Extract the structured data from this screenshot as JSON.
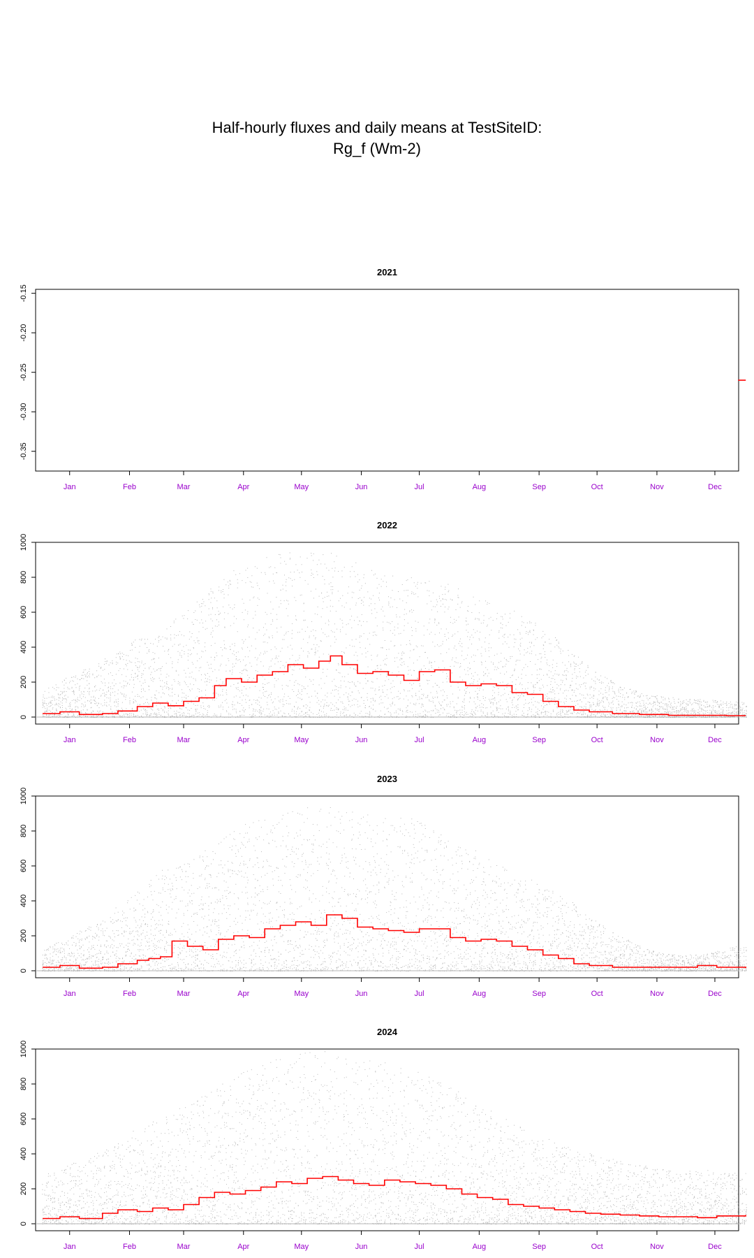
{
  "title_line1": "Half-hourly fluxes and daily means at TestSiteID:",
  "title_line2": "Rg_f (Wm-2)",
  "colors": {
    "daily_mean": "#ff0000",
    "halfhourly": "#9a9a9a",
    "month_label": "#9900cc",
    "zero_line": "#b4b4b4"
  },
  "months": [
    "Jan",
    "Feb",
    "Mar",
    "Apr",
    "May",
    "Jun",
    "Jul",
    "Aug",
    "Sep",
    "Oct",
    "Nov",
    "Dec"
  ],
  "chart_data": [
    {
      "type": "line",
      "title": "2021",
      "ylim": [
        -0.375,
        -0.145
      ],
      "yticks": [
        "-0.15",
        "-0.20",
        "-0.25",
        "-0.30",
        "-0.35"
      ],
      "ytick_values": [
        -0.15,
        -0.2,
        -0.25,
        -0.3,
        -0.35
      ],
      "daily_mean": [
        [
          361,
          -0.26
        ],
        [
          365,
          -0.26
        ]
      ],
      "halfhourly_envelope": null,
      "grid": false
    },
    {
      "type": "line",
      "title": "2022",
      "ylim": [
        -40,
        1000
      ],
      "yticks": [
        "0",
        "200",
        "400",
        "600",
        "800",
        "1000"
      ],
      "ytick_values": [
        0,
        200,
        400,
        600,
        800,
        1000
      ],
      "halfhourly_envelope": [
        [
          1,
          150
        ],
        [
          15,
          240
        ],
        [
          32,
          330
        ],
        [
          45,
          430
        ],
        [
          60,
          480
        ],
        [
          75,
          620
        ],
        [
          90,
          760
        ],
        [
          105,
          880
        ],
        [
          120,
          930
        ],
        [
          135,
          960
        ],
        [
          150,
          940
        ],
        [
          165,
          880
        ],
        [
          180,
          830
        ],
        [
          195,
          800
        ],
        [
          210,
          780
        ],
        [
          225,
          700
        ],
        [
          240,
          640
        ],
        [
          255,
          560
        ],
        [
          270,
          420
        ],
        [
          285,
          280
        ],
        [
          300,
          180
        ],
        [
          315,
          130
        ],
        [
          330,
          110
        ],
        [
          345,
          100
        ],
        [
          360,
          90
        ]
      ],
      "daily_mean": [
        [
          1,
          20
        ],
        [
          10,
          30
        ],
        [
          20,
          15
        ],
        [
          32,
          20
        ],
        [
          40,
          35
        ],
        [
          50,
          60
        ],
        [
          58,
          80
        ],
        [
          66,
          65
        ],
        [
          74,
          90
        ],
        [
          82,
          110
        ],
        [
          90,
          180
        ],
        [
          96,
          220
        ],
        [
          104,
          200
        ],
        [
          112,
          240
        ],
        [
          120,
          260
        ],
        [
          128,
          300
        ],
        [
          136,
          280
        ],
        [
          144,
          320
        ],
        [
          150,
          350
        ],
        [
          156,
          300
        ],
        [
          164,
          250
        ],
        [
          172,
          260
        ],
        [
          180,
          240
        ],
        [
          188,
          210
        ],
        [
          196,
          260
        ],
        [
          204,
          270
        ],
        [
          212,
          200
        ],
        [
          220,
          180
        ],
        [
          228,
          190
        ],
        [
          236,
          180
        ],
        [
          244,
          140
        ],
        [
          252,
          130
        ],
        [
          260,
          90
        ],
        [
          268,
          60
        ],
        [
          276,
          40
        ],
        [
          284,
          30
        ],
        [
          296,
          20
        ],
        [
          310,
          15
        ],
        [
          325,
          10
        ],
        [
          340,
          10
        ],
        [
          355,
          8
        ],
        [
          365,
          8
        ]
      ],
      "grid": false
    },
    {
      "type": "line",
      "title": "2023",
      "ylim": [
        -40,
        1000
      ],
      "yticks": [
        "0",
        "200",
        "400",
        "600",
        "800",
        "1000"
      ],
      "ytick_values": [
        0,
        200,
        400,
        600,
        800,
        1000
      ],
      "halfhourly_envelope": [
        [
          1,
          120
        ],
        [
          15,
          200
        ],
        [
          32,
          300
        ],
        [
          45,
          420
        ],
        [
          52,
          470
        ],
        [
          60,
          570
        ],
        [
          75,
          620
        ],
        [
          90,
          730
        ],
        [
          105,
          850
        ],
        [
          120,
          880
        ],
        [
          135,
          930
        ],
        [
          150,
          960
        ],
        [
          165,
          900
        ],
        [
          180,
          880
        ],
        [
          195,
          870
        ],
        [
          210,
          760
        ],
        [
          225,
          700
        ],
        [
          240,
          600
        ],
        [
          255,
          520
        ],
        [
          270,
          440
        ],
        [
          285,
          300
        ],
        [
          300,
          200
        ],
        [
          315,
          120
        ],
        [
          330,
          90
        ],
        [
          345,
          100
        ],
        [
          360,
          140
        ]
      ],
      "daily_mean": [
        [
          1,
          20
        ],
        [
          10,
          30
        ],
        [
          20,
          15
        ],
        [
          32,
          20
        ],
        [
          40,
          40
        ],
        [
          50,
          60
        ],
        [
          56,
          70
        ],
        [
          62,
          80
        ],
        [
          68,
          170
        ],
        [
          76,
          140
        ],
        [
          84,
          120
        ],
        [
          92,
          180
        ],
        [
          100,
          200
        ],
        [
          108,
          190
        ],
        [
          116,
          240
        ],
        [
          124,
          260
        ],
        [
          132,
          280
        ],
        [
          140,
          260
        ],
        [
          148,
          320
        ],
        [
          156,
          300
        ],
        [
          164,
          250
        ],
        [
          172,
          240
        ],
        [
          180,
          230
        ],
        [
          188,
          220
        ],
        [
          196,
          240
        ],
        [
          204,
          240
        ],
        [
          212,
          190
        ],
        [
          220,
          170
        ],
        [
          228,
          180
        ],
        [
          236,
          170
        ],
        [
          244,
          140
        ],
        [
          252,
          120
        ],
        [
          260,
          90
        ],
        [
          268,
          70
        ],
        [
          276,
          40
        ],
        [
          284,
          30
        ],
        [
          296,
          20
        ],
        [
          310,
          20
        ],
        [
          325,
          20
        ],
        [
          340,
          30
        ],
        [
          350,
          20
        ],
        [
          365,
          15
        ]
      ],
      "grid": false
    },
    {
      "type": "line",
      "title": "2024",
      "ylim": [
        -40,
        1000
      ],
      "yticks": [
        "0",
        "200",
        "400",
        "600",
        "800",
        "1000"
      ],
      "ytick_values": [
        0,
        200,
        400,
        600,
        800,
        1000
      ],
      "halfhourly_envelope": [
        [
          1,
          280
        ],
        [
          15,
          340
        ],
        [
          32,
          420
        ],
        [
          45,
          520
        ],
        [
          60,
          600
        ],
        [
          75,
          680
        ],
        [
          90,
          780
        ],
        [
          105,
          880
        ],
        [
          120,
          940
        ],
        [
          135,
          980
        ],
        [
          150,
          990
        ],
        [
          165,
          950
        ],
        [
          180,
          920
        ],
        [
          195,
          870
        ],
        [
          210,
          800
        ],
        [
          225,
          700
        ],
        [
          240,
          620
        ],
        [
          255,
          520
        ],
        [
          270,
          460
        ],
        [
          285,
          400
        ],
        [
          300,
          360
        ],
        [
          315,
          330
        ],
        [
          330,
          300
        ],
        [
          345,
          310
        ],
        [
          360,
          290
        ]
      ],
      "daily_mean": [
        [
          1,
          30
        ],
        [
          10,
          40
        ],
        [
          20,
          30
        ],
        [
          32,
          60
        ],
        [
          40,
          80
        ],
        [
          50,
          70
        ],
        [
          58,
          90
        ],
        [
          66,
          80
        ],
        [
          74,
          110
        ],
        [
          82,
          150
        ],
        [
          90,
          180
        ],
        [
          98,
          170
        ],
        [
          106,
          190
        ],
        [
          114,
          210
        ],
        [
          122,
          240
        ],
        [
          130,
          230
        ],
        [
          138,
          260
        ],
        [
          146,
          270
        ],
        [
          154,
          250
        ],
        [
          162,
          230
        ],
        [
          170,
          220
        ],
        [
          178,
          250
        ],
        [
          186,
          240
        ],
        [
          194,
          230
        ],
        [
          202,
          220
        ],
        [
          210,
          200
        ],
        [
          218,
          170
        ],
        [
          226,
          150
        ],
        [
          234,
          140
        ],
        [
          242,
          110
        ],
        [
          250,
          100
        ],
        [
          258,
          90
        ],
        [
          266,
          80
        ],
        [
          274,
          70
        ],
        [
          282,
          60
        ],
        [
          290,
          55
        ],
        [
          300,
          50
        ],
        [
          310,
          45
        ],
        [
          320,
          40
        ],
        [
          330,
          40
        ],
        [
          340,
          35
        ],
        [
          350,
          45
        ],
        [
          365,
          50
        ]
      ],
      "grid": false
    }
  ]
}
